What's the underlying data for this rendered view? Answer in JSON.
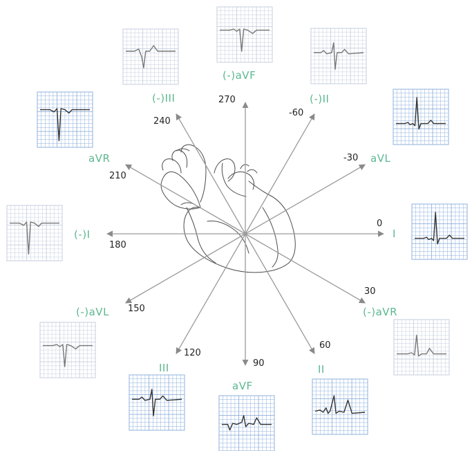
{
  "diagram": {
    "center": "heart",
    "axes": [
      {
        "degree_label": "0",
        "angle": 0,
        "positive_lead": "I",
        "positive_color": "#5cb88f"
      },
      {
        "degree_label": "30",
        "angle": 30,
        "positive_lead": "(-)aVR"
      },
      {
        "degree_label": "60",
        "angle": 60,
        "positive_lead": "II"
      },
      {
        "degree_label": "90",
        "angle": 90,
        "positive_lead": "aVF"
      },
      {
        "degree_label": "120",
        "angle": 120,
        "positive_lead": "III"
      },
      {
        "degree_label": "150",
        "angle": 150,
        "positive_lead": "(-)aVL"
      },
      {
        "degree_label": "180",
        "angle": 180,
        "positive_lead": "(-)I"
      },
      {
        "degree_label": "210",
        "angle": 210,
        "positive_lead": "aVR"
      },
      {
        "degree_label": "240",
        "angle": 240,
        "positive_lead": "(-)III"
      },
      {
        "degree_label": "270",
        "angle": 270,
        "positive_lead": "(-)aVF"
      },
      {
        "degree_label": "-60",
        "angle": 300,
        "positive_lead": "(-)II"
      },
      {
        "degree_label": "-30",
        "angle": 330,
        "positive_lead": "aVL"
      }
    ],
    "strips": [
      {
        "lead": "I",
        "grid": "blue",
        "trace": "tall-r"
      },
      {
        "lead": "(-)aVR",
        "grid": "gray",
        "trace": "mid-r"
      },
      {
        "lead": "II",
        "grid": "blue",
        "trace": "biphasic"
      },
      {
        "lead": "aVF",
        "grid": "blue",
        "trace": "small-r"
      },
      {
        "lead": "III",
        "grid": "blue",
        "trace": "rs"
      },
      {
        "lead": "(-)aVL",
        "grid": "gray",
        "trace": "small-s"
      },
      {
        "lead": "(-)I",
        "grid": "gray",
        "trace": "deep-s"
      },
      {
        "lead": "aVR",
        "grid": "blue",
        "trace": "deep-s"
      },
      {
        "lead": "(-)III",
        "grid": "gray",
        "trace": "sr"
      },
      {
        "lead": "(-)aVF",
        "grid": "gray",
        "trace": "small-s"
      },
      {
        "lead": "(-)II",
        "grid": "gray",
        "trace": "rs"
      },
      {
        "lead": "aVL",
        "grid": "blue",
        "trace": "tall-r"
      }
    ],
    "colors": {
      "lead_label": "#5cb88f",
      "axis": "#9a9a9a",
      "grid_blue": "#8fb0dc",
      "grid_gray": "#c5cedd",
      "trace": "#333333"
    }
  }
}
